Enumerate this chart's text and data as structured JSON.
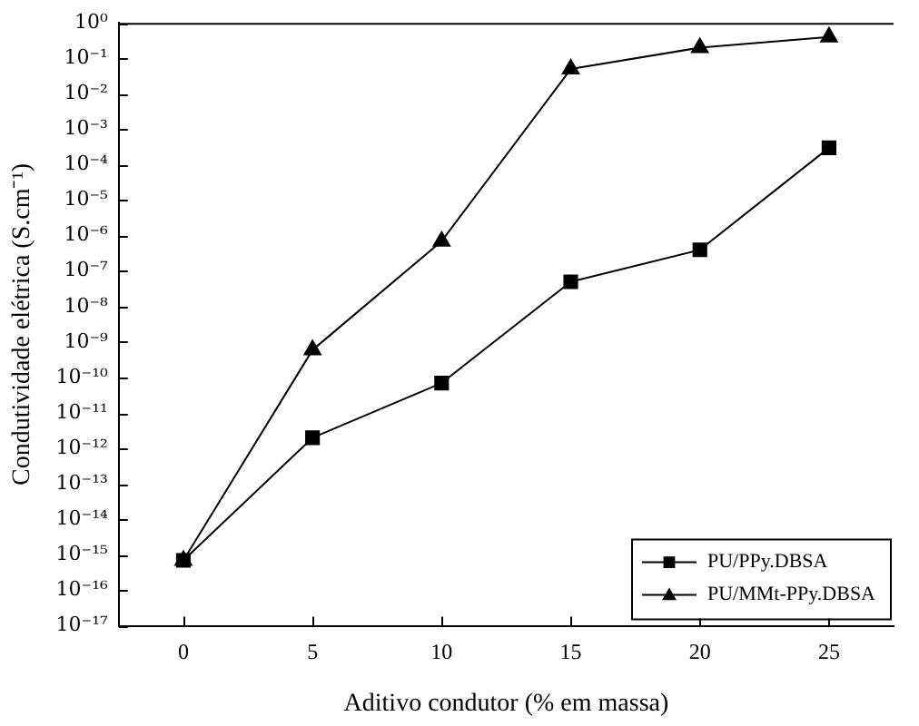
{
  "chart_data": {
    "type": "line",
    "xlabel": "Aditivo condutor (% em massa)",
    "ylabel": "Condutividade elétrica (S.cm⁻¹)",
    "log": "y",
    "grid": false,
    "legend": "bottom right",
    "line_style": "solid",
    "x": [
      0,
      5,
      10,
      15,
      20,
      25
    ],
    "xlim": [
      -2.5,
      27.5
    ],
    "xticks": [
      0,
      5,
      10,
      15,
      20,
      25
    ],
    "ylim": [
      1e-17,
      1
    ],
    "yticks": [
      {
        "value": 1,
        "label": "10⁰"
      },
      {
        "value": 0.1,
        "label": "10⁻¹"
      },
      {
        "value": 0.01,
        "label": "10⁻²"
      },
      {
        "value": 0.001,
        "label": "10⁻³"
      },
      {
        "value": 0.0001,
        "label": "10⁻⁴"
      },
      {
        "value": 1e-05,
        "label": "10⁻⁵"
      },
      {
        "value": 1e-06,
        "label": "10⁻⁶"
      },
      {
        "value": 1e-07,
        "label": "10⁻⁷"
      },
      {
        "value": 1e-08,
        "label": "10⁻⁸"
      },
      {
        "value": 1e-09,
        "label": "10⁻⁹"
      },
      {
        "value": 1e-10,
        "label": "10⁻¹⁰"
      },
      {
        "value": 1e-11,
        "label": "10⁻¹¹"
      },
      {
        "value": 1e-12,
        "label": "10⁻¹²"
      },
      {
        "value": 1e-13,
        "label": "10⁻¹³"
      },
      {
        "value": 1e-14,
        "label": "10⁻¹⁴"
      },
      {
        "value": 1e-15,
        "label": "10⁻¹⁵"
      },
      {
        "value": 1e-16,
        "label": "10⁻¹⁶"
      },
      {
        "value": 1e-17,
        "label": "10⁻¹⁷"
      }
    ],
    "series": [
      {
        "name": "PU/PPy.DBSA",
        "color": "#000000",
        "marker": "square",
        "values": [
          7e-16,
          2e-12,
          7e-11,
          5e-08,
          4e-07,
          0.0003
        ]
      },
      {
        "name": "PU/MMt-PPy.DBSA",
        "color": "#000000",
        "marker": "triangle",
        "values": [
          7e-16,
          6e-10,
          7e-07,
          0.05,
          0.2,
          0.4
        ]
      }
    ]
  }
}
